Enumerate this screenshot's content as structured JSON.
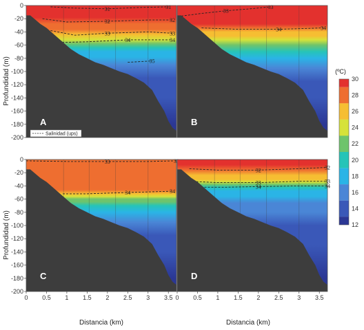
{
  "figure": {
    "ylabel": "Profundidad (m)",
    "xlabel": "Distancia (km)",
    "colorbar_unit": "(ºC)",
    "legend_label": "Salinidad (ups)",
    "panels": [
      "A",
      "B",
      "C",
      "D"
    ]
  },
  "chart_data": {
    "type": "heatmap",
    "xlabel": "Distancia (km)",
    "ylabel": "Profundidad (m)",
    "xlim": [
      0,
      3.7
    ],
    "ylim": [
      -200,
      0
    ],
    "x_ticks": [
      "0",
      "0.5",
      "1",
      "1.5",
      "2",
      "2.5",
      "3",
      "3.5"
    ],
    "x_tick_values": [
      0,
      0.5,
      1,
      1.5,
      2,
      2.5,
      3,
      3.5
    ],
    "y_ticks": [
      "0",
      "-20",
      "-40",
      "-60",
      "-80",
      "-100",
      "-120",
      "-140",
      "-160",
      "-180",
      "-200"
    ],
    "y_tick_values": [
      0,
      -20,
      -40,
      -60,
      -80,
      -100,
      -120,
      -140,
      -160,
      -180,
      -200
    ],
    "colorbar": {
      "label": "(ºC)",
      "min": 12,
      "max": 30,
      "ticks": [
        "30",
        "28",
        "26",
        "24",
        "22",
        "20",
        "18",
        "16",
        "14",
        "12"
      ],
      "tick_values": [
        30,
        28,
        26,
        24,
        22,
        20,
        18,
        16,
        14,
        12
      ],
      "colors": {
        "12": "#2b3794",
        "14": "#3a58b8",
        "16": "#4a86d6",
        "18": "#2ab4e6",
        "20": "#26c4b8",
        "22": "#6ec46c",
        "24": "#d6e23a",
        "26": "#f6be32",
        "28": "#ee6e30",
        "30": "#e3312e"
      }
    },
    "seafloor": {
      "x": [
        0,
        0.1,
        0.35,
        0.5,
        0.65,
        0.8,
        0.95,
        1.1,
        1.3,
        1.5,
        1.7,
        1.9,
        2.1,
        2.3,
        2.5,
        2.7,
        2.9,
        3.1,
        3.25,
        3.4,
        3.5,
        3.6,
        3.7
      ],
      "depth": [
        -15,
        -15,
        -28,
        -34,
        -42,
        -50,
        -58,
        -66,
        -74,
        -80,
        -86,
        -90,
        -95,
        -100,
        -104,
        -110,
        -117,
        -128,
        -145,
        -160,
        -175,
        -185,
        -190
      ]
    },
    "series": [
      {
        "panel": "A",
        "temperature_profile": {
          "depth": [
            0,
            -18,
            -28,
            -36,
            -44,
            -52,
            -58,
            -64,
            -70,
            -78,
            -90,
            -110,
            -140,
            -180
          ],
          "temp": [
            30,
            30,
            29,
            28,
            26,
            24,
            22.5,
            21,
            19,
            18,
            16.5,
            15,
            13.5,
            12.5
          ]
        },
        "salinity_labels": [
          "31",
          "31",
          "32",
          "32",
          "33",
          "33",
          "34",
          "34",
          "35"
        ],
        "salinity_isolines": [
          {
            "label": "31",
            "x": [
              0.6,
              1.2,
              2,
              2.8,
              3.5
            ],
            "depth": [
              -2,
              -4,
              -5,
              -3,
              -2
            ]
          },
          {
            "label": "32",
            "x": [
              0.4,
              1,
              2,
              3,
              3.6
            ],
            "depth": [
              -20,
              -25,
              -24,
              -22,
              -22
            ]
          },
          {
            "label": "33",
            "x": [
              0.6,
              1.2,
              2,
              3,
              3.6
            ],
            "depth": [
              -38,
              -45,
              -42,
              -40,
              -42
            ]
          },
          {
            "label": "34",
            "x": [
              0.8,
              1.5,
              2.5,
              3.6
            ],
            "depth": [
              -56,
              -55,
              -52,
              -52
            ]
          },
          {
            "label": "35",
            "x": [
              2.5,
              3.1
            ],
            "depth": [
              -86,
              -84
            ]
          }
        ]
      },
      {
        "panel": "B",
        "temperature_profile": {
          "depth": [
            0,
            -28,
            -34,
            -40,
            -46,
            -52,
            -60,
            -70,
            -80,
            -95,
            -115,
            -140,
            -180
          ],
          "temp": [
            30,
            30,
            28.5,
            27,
            25.5,
            24,
            22,
            20,
            18.5,
            16.5,
            15,
            13.5,
            12.5
          ]
        },
        "salinity_labels": [
          "33",
          "33",
          "34",
          "34"
        ],
        "salinity_isolines": [
          {
            "label": "33",
            "x": [
              0.1,
              0.6,
              1.2,
              1.8,
              2.3
            ],
            "depth": [
              -16,
              -12,
              -8,
              -5,
              -2
            ]
          },
          {
            "label": "34",
            "x": [
              0.6,
              1.5,
              2.5,
              3.6
            ],
            "depth": [
              -34,
              -36,
              -36,
              -34
            ]
          }
        ]
      },
      {
        "panel": "C",
        "temperature_profile": {
          "depth": [
            0,
            -40,
            -46,
            -52,
            -56,
            -60,
            -64,
            -70,
            -80,
            -95,
            -115,
            -140,
            -180
          ],
          "temp": [
            28.5,
            28.5,
            27.5,
            26,
            24.5,
            23,
            21.5,
            20,
            18.5,
            16.5,
            15,
            13.5,
            12.5
          ]
        },
        "salinity_labels": [
          "32",
          "33",
          "33",
          "34",
          "34"
        ],
        "salinity_isolines": [
          {
            "label": "33",
            "x": [
              0,
              1,
              2,
              3,
              3.7
            ],
            "depth": [
              -2,
              -3,
              -3,
              -3,
              -2
            ]
          },
          {
            "label": "34",
            "x": [
              0.9,
              1.5,
              2.5,
              3.6
            ],
            "depth": [
              -52,
              -52,
              -50,
              -48
            ]
          }
        ]
      },
      {
        "panel": "D",
        "temperature_profile": {
          "depth": [
            0,
            -8,
            -16,
            -24,
            -30,
            -34,
            -38,
            -42,
            -48,
            -56,
            -66,
            -80,
            -100,
            -130,
            -180
          ],
          "temp": [
            30,
            30,
            28.5,
            27,
            25.5,
            23.5,
            21.5,
            20,
            18.5,
            17.5,
            16.5,
            15.5,
            14.5,
            13.5,
            12.5
          ]
        },
        "salinity_labels": [
          "32",
          "32",
          "33",
          "33",
          "34",
          "34"
        ],
        "salinity_isolines": [
          {
            "label": "32",
            "x": [
              0.3,
              1,
              2,
              3,
              3.7
            ],
            "depth": [
              -14,
              -16,
              -16,
              -14,
              -12
            ]
          },
          {
            "label": "33",
            "x": [
              0.3,
              1,
              2,
              3,
              3.7
            ],
            "depth": [
              -33,
              -35,
              -35,
              -33,
              -33
            ]
          },
          {
            "label": "34",
            "x": [
              0.5,
              1.2,
              2,
              3,
              3.7
            ],
            "depth": [
              -42,
              -42,
              -41,
              -40,
              -40
            ]
          }
        ]
      }
    ]
  }
}
